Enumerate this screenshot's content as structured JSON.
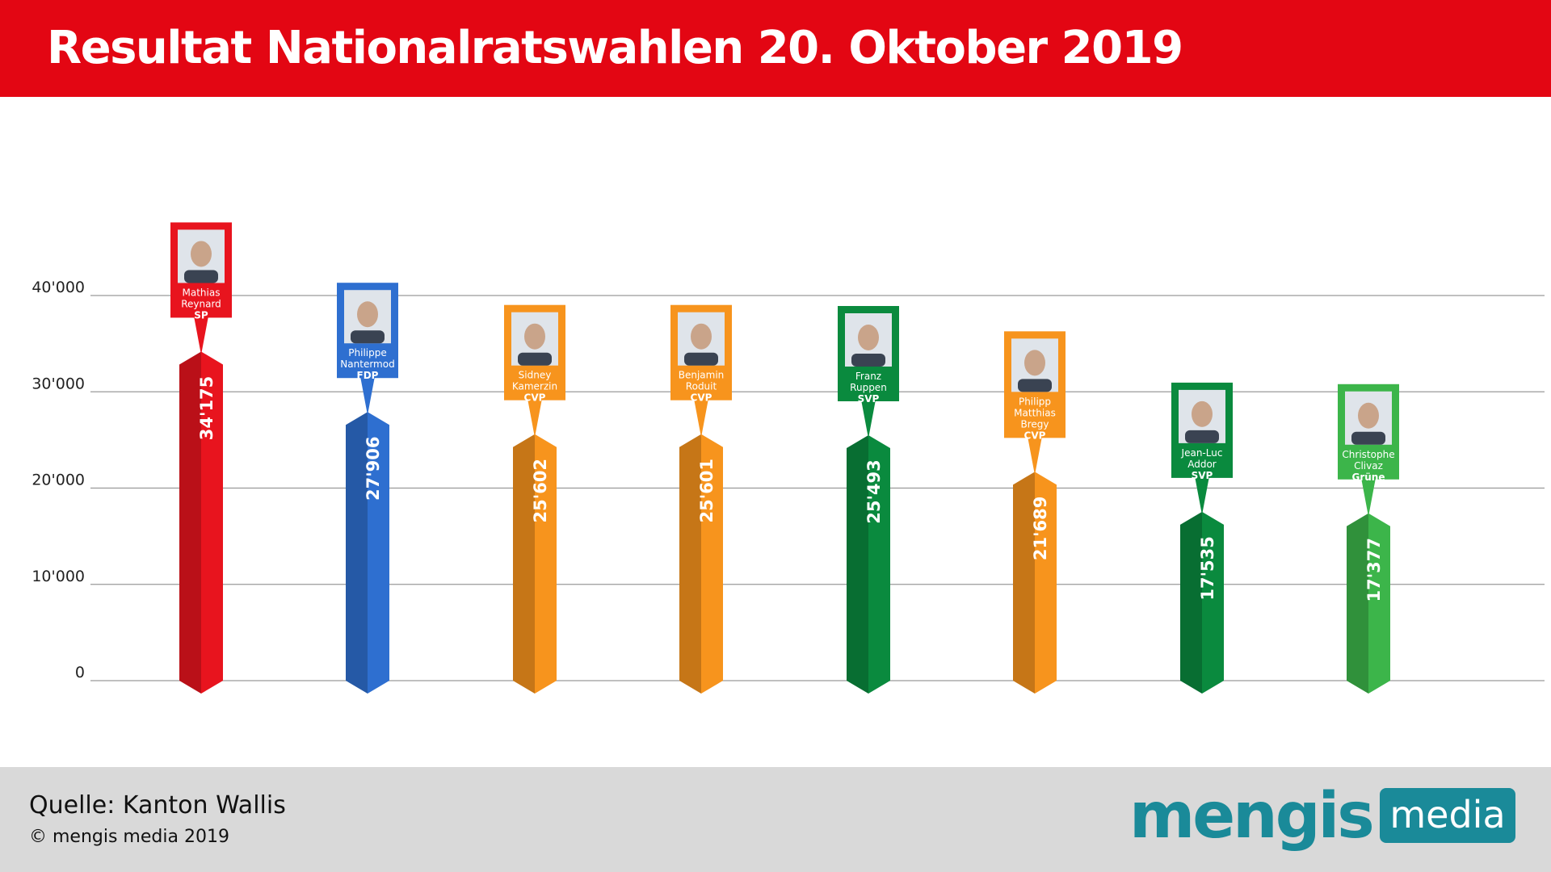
{
  "title": "Resultat Nationalratswahlen 20. Oktober 2019",
  "footer": {
    "source": "Quelle: Kanton Wallis",
    "copyright": "© mengis media 2019",
    "logo_word": "mengis",
    "logo_badge": "media"
  },
  "colors": {
    "header": "#e30613",
    "grid": "#9a9a9a",
    "footer": "#d9d9d9",
    "brand": "#1a8a99",
    "SP": "#e8141e",
    "FDP": "#2e6fd0",
    "CVP": "#f7941d",
    "SVP": "#0a8a3e",
    "Grüne": "#3cb54a"
  },
  "chart_data": {
    "type": "bar",
    "title": "Resultat Nationalratswahlen 20. Oktober 2019",
    "xlabel": "",
    "ylabel": "",
    "ylim": [
      0,
      40000
    ],
    "yticks": [
      "0",
      "10'000",
      "20'000",
      "30'000",
      "40'000"
    ],
    "grid": true,
    "categories": [
      [
        "Mathias",
        "Reynard"
      ],
      [
        "Philippe",
        "Nantermod"
      ],
      [
        "Sidney",
        "Kamerzin"
      ],
      [
        "Benjamin",
        "Roduit"
      ],
      [
        "Franz",
        "Ruppen"
      ],
      [
        "Philipp",
        "Matthias",
        "Bregy"
      ],
      [
        "Jean-Luc",
        "Addor"
      ],
      [
        "Christophe",
        "Clivaz"
      ]
    ],
    "parties": [
      "SP",
      "FDP",
      "CVP",
      "CVP",
      "SVP",
      "CVP",
      "SVP",
      "Grüne"
    ],
    "values": [
      34175,
      27906,
      25602,
      25601,
      25493,
      21689,
      17535,
      17377
    ],
    "value_labels": [
      "34'175",
      "27'906",
      "25'602",
      "25'601",
      "25'493",
      "21'689",
      "17'535",
      "17'377"
    ]
  }
}
